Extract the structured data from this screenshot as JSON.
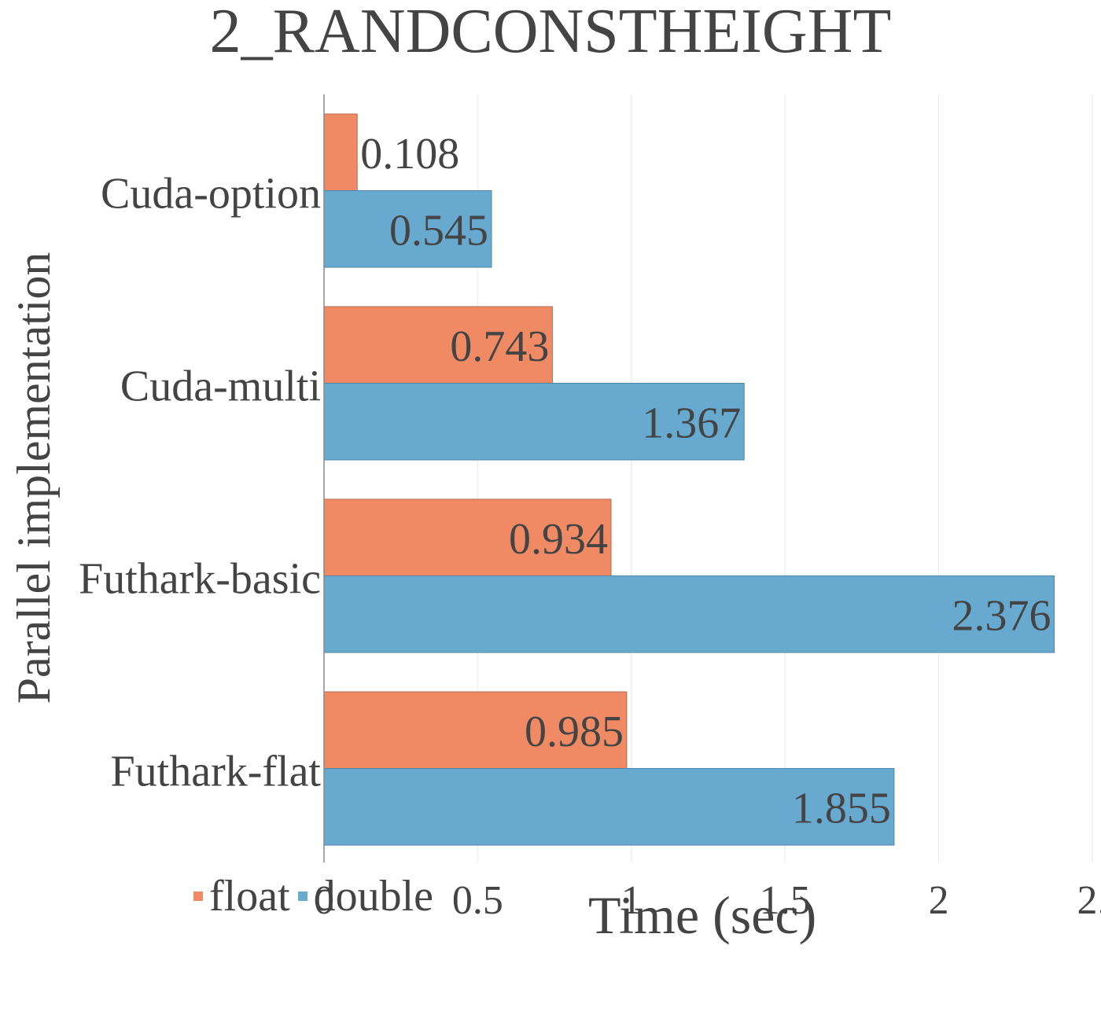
{
  "chart_data": {
    "type": "bar",
    "orientation": "horizontal",
    "title": "2_RANDCONSTHEIGHT",
    "xlabel": "Time (sec)",
    "ylabel": "Parallel implementation",
    "categories": [
      "Cuda-option",
      "Cuda-multi",
      "Futhark-basic",
      "Futhark-flat"
    ],
    "series": [
      {
        "name": "float",
        "color": "#F08A65",
        "values": [
          0.108,
          0.743,
          0.934,
          0.985
        ],
        "labels": [
          "0.108",
          "0.743",
          "0.934",
          "0.985"
        ]
      },
      {
        "name": "double",
        "color": "#68A9D0",
        "values": [
          0.545,
          1.367,
          2.376,
          1.855
        ],
        "labels": [
          "0.545",
          "1.367",
          "2.376",
          "1.855"
        ]
      }
    ],
    "xlim": [
      0,
      2.5
    ],
    "xticks": [
      "0",
      "0.5",
      "1",
      "1.5",
      "2",
      "2."
    ],
    "grid": "vertical",
    "legend": "bottom-left"
  }
}
